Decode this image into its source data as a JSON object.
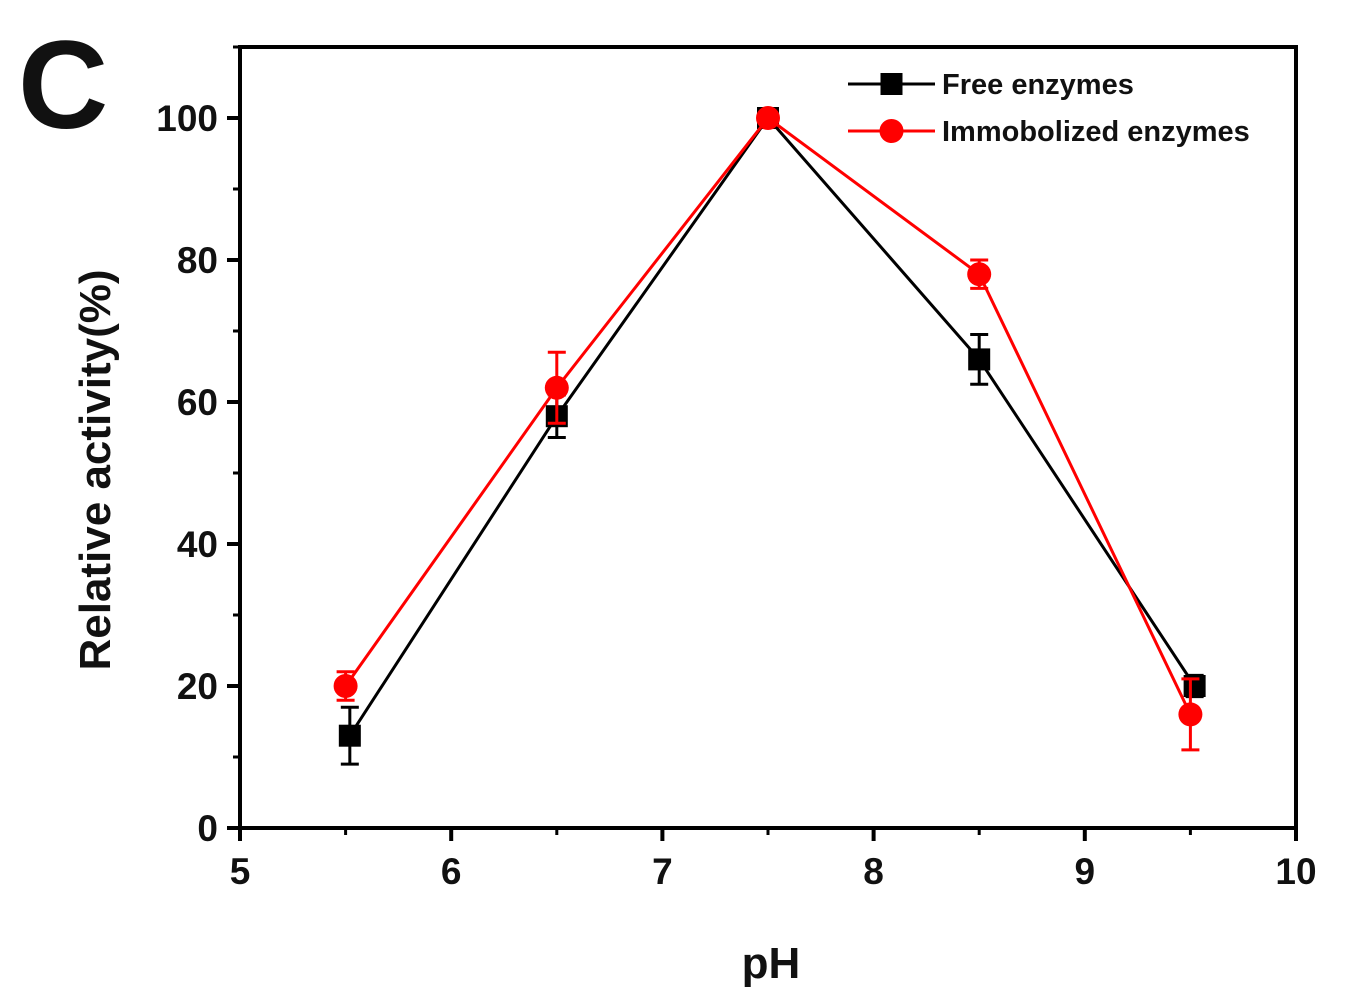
{
  "panel_label": "C",
  "chart_data": {
    "type": "line",
    "title": "",
    "xlabel": "pH",
    "ylabel": "Relative activity(%)",
    "xlim": [
      5,
      10
    ],
    "ylim": [
      0,
      110
    ],
    "x_ticks": [
      "5",
      "6",
      "7",
      "8",
      "9",
      "10"
    ],
    "y_ticks": [
      "0",
      "20",
      "40",
      "60",
      "80",
      "100"
    ],
    "x_tick_values": [
      5,
      6,
      7,
      8,
      9,
      10
    ],
    "y_tick_values": [
      0,
      20,
      40,
      60,
      80,
      100
    ],
    "y_minor_tick_values": [
      10,
      30,
      50,
      70,
      90,
      110
    ],
    "grid": false,
    "legend_position": "top-right",
    "x": [
      5.5,
      6.5,
      7.5,
      8.5,
      9.5
    ],
    "series": [
      {
        "name": "Free enzymes",
        "color": "#000000",
        "marker": "square",
        "x": [
          5.52,
          6.5,
          7.5,
          8.5,
          9.52
        ],
        "values": [
          13,
          58,
          100,
          66,
          20
        ],
        "errors": [
          4,
          3,
          0.5,
          3.5,
          1.5
        ]
      },
      {
        "name": "Immobolized enzymes",
        "color": "#ff0000",
        "marker": "circle",
        "x": [
          5.5,
          6.5,
          7.5,
          8.5,
          9.5
        ],
        "values": [
          20,
          62,
          100,
          78,
          16
        ],
        "errors": [
          2,
          5,
          0.5,
          2,
          5
        ]
      }
    ]
  }
}
